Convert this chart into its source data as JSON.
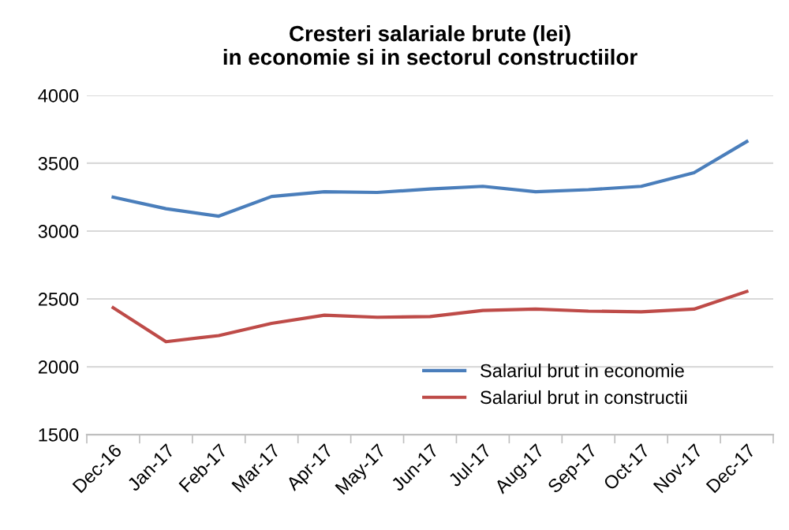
{
  "chart_data": {
    "type": "line",
    "title": "Cresteri salariale brute (lei)\nin economie si in sectorul constructiilor",
    "categories": [
      "Dec-16",
      "Jan-17",
      "Feb-17",
      "Mar-17",
      "Apr-17",
      "May-17",
      "Jun-17",
      "Jul-17",
      "Aug-17",
      "Sep-17",
      "Oct-17",
      "Nov-17",
      "Dec-17"
    ],
    "series": [
      {
        "name": "Salariul brut in economie",
        "color": "#4a7ebb",
        "values": [
          3250,
          3165,
          3110,
          3255,
          3290,
          3285,
          3310,
          3330,
          3290,
          3305,
          3330,
          3430,
          3660
        ]
      },
      {
        "name": "Salariul brut in constructii",
        "color": "#be4b48",
        "values": [
          2435,
          2185,
          2230,
          2320,
          2380,
          2365,
          2370,
          2415,
          2425,
          2410,
          2405,
          2425,
          2555
        ]
      }
    ],
    "ylim": [
      1500,
      4000
    ],
    "yticks": [
      1500,
      2000,
      2500,
      3000,
      3500,
      4000
    ],
    "grid": "y",
    "legend": "bottom right",
    "marker": "none",
    "line_style": "solid"
  }
}
